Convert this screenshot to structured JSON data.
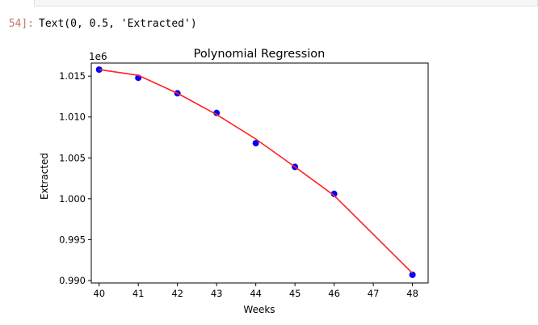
{
  "output": {
    "prompt": "54]:",
    "text": "Text(0, 0.5, 'Extracted')"
  },
  "chart_data": {
    "type": "line",
    "title": "Polynomial Regression",
    "xlabel": "Weeks",
    "ylabel": "Extracted",
    "offset_label": "1e6",
    "xlim": [
      39.8,
      48.4
    ],
    "ylim": [
      989700,
      1016600
    ],
    "x_ticks": [
      40,
      41,
      42,
      43,
      44,
      45,
      46,
      47,
      48
    ],
    "y_ticks": [
      990000,
      995000,
      1000000,
      1005000,
      1010000,
      1015000
    ],
    "y_tick_labels": [
      "0.990",
      "0.995",
      "1.000",
      "1.005",
      "1.010",
      "1.015"
    ],
    "series": [
      {
        "kind": "scatter",
        "color": "#0000ff",
        "x": [
          40,
          41,
          42,
          43,
          44,
          45,
          46,
          48
        ],
        "y": [
          1015800,
          1014800,
          1012900,
          1010500,
          1006800,
          1003900,
          1000600,
          990700
        ]
      },
      {
        "kind": "line",
        "color": "#ff2020",
        "x": [
          40,
          41,
          42,
          43,
          44,
          45,
          46,
          48
        ],
        "y": [
          1015800,
          1015100,
          1012900,
          1010300,
          1007300,
          1003900,
          1000400,
          990900
        ]
      }
    ]
  }
}
